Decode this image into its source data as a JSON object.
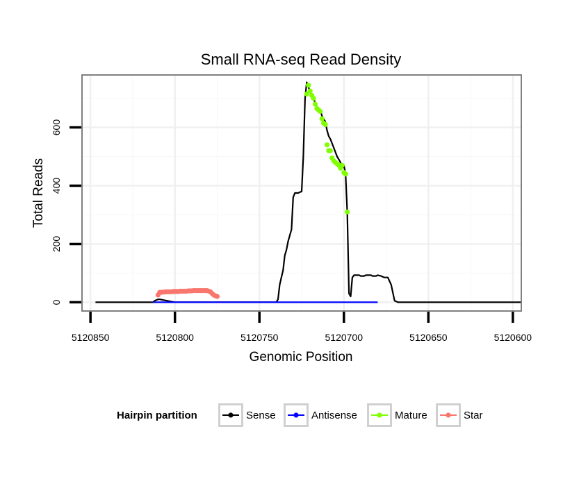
{
  "chart_data": {
    "type": "line",
    "title": "Small RNA-seq Read Density",
    "xlabel": "Genomic Position",
    "ylabel": "Total Reads",
    "x_reversed": true,
    "xlim": [
      5120855,
      5120595
    ],
    "ylim": [
      -30,
      780
    ],
    "x_ticks": [
      5120850,
      5120800,
      5120750,
      5120700,
      5120650,
      5120600
    ],
    "x_tick_labels": [
      "5120850",
      "5120800",
      "5120750",
      "5120700",
      "5120650",
      "5120600"
    ],
    "y_ticks": [
      0,
      200,
      400,
      600
    ],
    "y_tick_labels": [
      "0",
      "200",
      "400",
      "600"
    ],
    "grid": true,
    "legend": {
      "title": "Hairpin partition",
      "position": "bottom",
      "entries": [
        "Sense",
        "Antisense",
        "Mature",
        "Star"
      ]
    },
    "series": [
      {
        "name": "Sense",
        "color": "#000000",
        "mode": "line",
        "x": [
          5120847,
          5120813,
          5120812,
          5120810,
          5120809,
          5120800,
          5120741,
          5120740,
          5120739,
          5120738,
          5120737,
          5120736,
          5120735,
          5120734,
          5120733,
          5120732,
          5120731,
          5120730,
          5120729,
          5120728,
          5120727,
          5120726,
          5120725,
          5120724,
          5120723,
          5120722,
          5120721,
          5120720,
          5120718,
          5120716,
          5120714,
          5120713,
          5120711,
          5120710,
          5120709,
          5120708,
          5120707,
          5120706,
          5120705,
          5120704,
          5120703,
          5120702,
          5120701,
          5120700,
          5120699,
          5120698,
          5120697,
          5120696,
          5120695,
          5120694,
          5120693,
          5120692,
          5120691,
          5120690,
          5120689,
          5120688,
          5120687,
          5120686,
          5120685,
          5120684,
          5120683,
          5120682,
          5120681,
          5120680,
          5120678,
          5120676,
          5120674,
          5120672,
          5120670,
          5120668,
          5120666,
          5120664,
          5120662,
          5120660,
          5120658,
          5120656,
          5120654,
          5120653,
          5120652,
          5120651,
          5120650,
          5120595
        ],
        "y": [
          0,
          0,
          5,
          10,
          10,
          0,
          0,
          0,
          10,
          60,
          85,
          110,
          160,
          180,
          210,
          230,
          250,
          360,
          375,
          375,
          375,
          378,
          380,
          500,
          700,
          755,
          740,
          720,
          700,
          670,
          660,
          640,
          620,
          590,
          570,
          560,
          545,
          530,
          515,
          500,
          490,
          480,
          460,
          470,
          440,
          310,
          30,
          20,
          85,
          93,
          93,
          93,
          93,
          90,
          90,
          90,
          93,
          93,
          93,
          93,
          90,
          90,
          90,
          93,
          90,
          85,
          85,
          60,
          5,
          0,
          0,
          0,
          0,
          0,
          0,
          0,
          0,
          0,
          0,
          0,
          0,
          0
        ]
      },
      {
        "name": "Antisense",
        "color": "#0000ff",
        "mode": "line",
        "x": [
          5120813,
          5120680
        ],
        "y": [
          0,
          0
        ]
      },
      {
        "name": "Mature",
        "color": "#7fff00",
        "mode": "points",
        "x": [
          5120722,
          5120721,
          5120720,
          5120719,
          5120718,
          5120717,
          5120716,
          5120715,
          5120714,
          5120713,
          5120712,
          5120711,
          5120710,
          5120709,
          5120708,
          5120707,
          5120706,
          5120705,
          5120704,
          5120703,
          5120702,
          5120701,
          5120700,
          5120699,
          5120698
        ],
        "y": [
          715,
          745,
          725,
          710,
          700,
          680,
          665,
          660,
          655,
          630,
          615,
          610,
          540,
          520,
          520,
          495,
          485,
          480,
          475,
          470,
          460,
          470,
          445,
          440,
          310
        ]
      },
      {
        "name": "Star",
        "color": "#f8766d",
        "mode": "points",
        "x": [
          5120810,
          5120809,
          5120808,
          5120807,
          5120806,
          5120805,
          5120804,
          5120803,
          5120802,
          5120801,
          5120800,
          5120799,
          5120798,
          5120797,
          5120796,
          5120795,
          5120794,
          5120793,
          5120792,
          5120791,
          5120790,
          5120789,
          5120788,
          5120787,
          5120786,
          5120785,
          5120784,
          5120783,
          5120782,
          5120781,
          5120780,
          5120779,
          5120778,
          5120777,
          5120776,
          5120775
        ],
        "y": [
          25,
          34,
          34,
          35,
          35,
          36,
          36,
          36,
          36,
          37,
          37,
          37,
          37,
          38,
          38,
          38,
          38,
          38,
          39,
          39,
          39,
          40,
          40,
          40,
          40,
          40,
          40,
          40,
          40,
          40,
          38,
          36,
          30,
          25,
          22,
          20
        ]
      }
    ]
  }
}
